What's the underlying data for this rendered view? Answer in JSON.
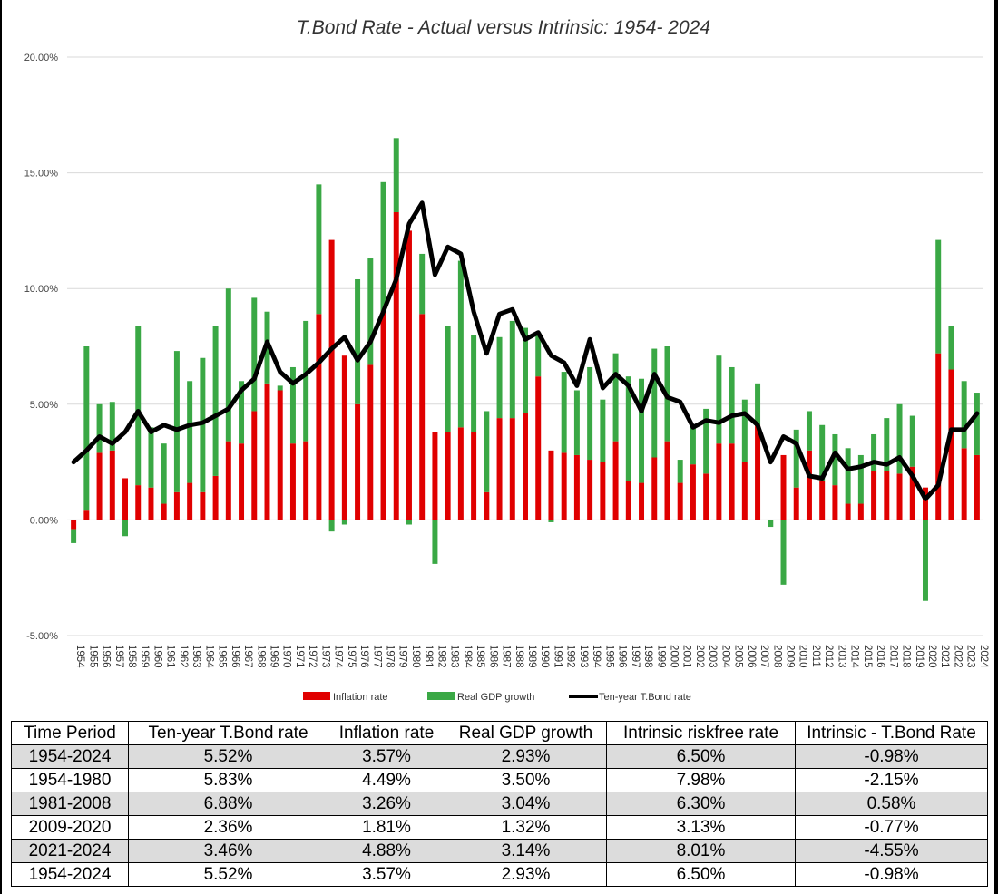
{
  "chart_data": {
    "type": "bar",
    "title": "T.Bond Rate - Actual versus Intrinsic: 1954- 2024",
    "stacked": true,
    "y_ticks": [
      "20.00%",
      "15.00%",
      "10.00%",
      "5.00%",
      "0.00%",
      "-5.00%"
    ],
    "ylim": [
      -5,
      20
    ],
    "y_unit": "%",
    "grid": true,
    "legend_position": "bottom",
    "categories": [
      "1954",
      "1955",
      "1956",
      "1957",
      "1958",
      "1959",
      "1960",
      "1961",
      "1962",
      "1963",
      "1964",
      "1965",
      "1966",
      "1967",
      "1968",
      "1969",
      "1970",
      "1971",
      "1972",
      "1973",
      "1974",
      "1975",
      "1976",
      "1977",
      "1978",
      "1979",
      "1980",
      "1981",
      "1982",
      "1983",
      "1984",
      "1985",
      "1986",
      "1987",
      "1988",
      "1989",
      "1990",
      "1991",
      "1992",
      "1993",
      "1994",
      "1995",
      "1996",
      "1997",
      "1998",
      "1999",
      "2000",
      "2001",
      "2002",
      "2003",
      "2004",
      "2005",
      "2006",
      "2007",
      "2008",
      "2009",
      "2010",
      "2011",
      "2012",
      "2013",
      "2014",
      "2015",
      "2016",
      "2017",
      "2018",
      "2019",
      "2020",
      "2021",
      "2022",
      "2023",
      "2024"
    ],
    "series": [
      {
        "name": "Inflation rate",
        "color": "#e00000",
        "kind": "bar",
        "values": [
          -0.4,
          0.4,
          2.9,
          3.0,
          1.8,
          1.5,
          1.4,
          0.7,
          1.2,
          1.6,
          1.2,
          1.9,
          3.4,
          3.3,
          4.7,
          5.9,
          5.6,
          3.3,
          3.4,
          8.9,
          12.1,
          7.1,
          5.0,
          6.7,
          9.0,
          13.3,
          12.5,
          8.9,
          3.8,
          3.8,
          4.0,
          3.8,
          1.2,
          4.4,
          4.4,
          4.6,
          6.2,
          3.0,
          2.9,
          2.8,
          2.6,
          2.5,
          3.4,
          1.7,
          1.6,
          2.7,
          3.4,
          1.6,
          2.4,
          2.0,
          3.3,
          3.3,
          2.5,
          4.1,
          0.0,
          2.8,
          1.4,
          3.0,
          1.7,
          1.5,
          0.7,
          0.7,
          2.1,
          2.1,
          2.0,
          2.3,
          1.4,
          7.2,
          6.5,
          3.1,
          2.8
        ]
      },
      {
        "name": "Real GDP growth",
        "color": "#3aa845",
        "kind": "bar",
        "values": [
          -0.6,
          7.1,
          2.1,
          2.1,
          -0.7,
          6.9,
          2.6,
          2.6,
          6.1,
          4.4,
          5.8,
          6.5,
          6.6,
          2.7,
          4.9,
          3.1,
          0.2,
          3.3,
          5.2,
          5.6,
          -0.5,
          -0.2,
          5.4,
          4.6,
          5.6,
          3.2,
          -0.2,
          2.6,
          -1.9,
          4.6,
          7.2,
          4.2,
          3.5,
          3.5,
          4.2,
          3.7,
          1.9,
          -0.1,
          3.5,
          2.8,
          4.0,
          2.7,
          3.8,
          4.5,
          4.5,
          4.7,
          4.1,
          1.0,
          1.7,
          2.8,
          3.8,
          3.3,
          2.7,
          1.8,
          -0.3,
          -2.8,
          2.5,
          1.7,
          2.4,
          2.2,
          2.4,
          2.1,
          1.6,
          2.3,
          3.0,
          2.2,
          -3.5,
          4.9,
          1.9,
          2.9,
          2.7
        ]
      },
      {
        "name": "Ten-year T.Bond rate",
        "color": "#000000",
        "kind": "line",
        "values": [
          2.5,
          3.0,
          3.6,
          3.3,
          3.8,
          4.7,
          3.8,
          4.1,
          3.9,
          4.1,
          4.2,
          4.5,
          4.8,
          5.6,
          6.1,
          7.7,
          6.4,
          5.9,
          6.3,
          6.8,
          7.4,
          7.9,
          6.9,
          7.7,
          9.0,
          10.4,
          12.8,
          13.7,
          10.6,
          11.8,
          11.5,
          9.0,
          7.2,
          8.9,
          9.1,
          7.8,
          8.1,
          7.1,
          6.8,
          5.8,
          7.8,
          5.7,
          6.3,
          5.8,
          4.7,
          6.3,
          5.3,
          5.1,
          4.0,
          4.3,
          4.2,
          4.5,
          4.6,
          4.1,
          2.5,
          3.6,
          3.3,
          1.9,
          1.8,
          2.9,
          2.2,
          2.3,
          2.5,
          2.4,
          2.7,
          1.9,
          0.9,
          1.5,
          3.9,
          3.9,
          4.6
        ]
      }
    ]
  },
  "table": {
    "headers": [
      "Time Period",
      "Ten-year T.Bond rate",
      "Inflation rate",
      "Real GDP growth",
      "Intrinsic riskfree rate",
      "Intrinsic - T.Bond Rate"
    ],
    "rows": [
      [
        "1954-2024",
        "5.52%",
        "3.57%",
        "2.93%",
        "6.50%",
        "-0.98%"
      ],
      [
        "1954-1980",
        "5.83%",
        "4.49%",
        "3.50%",
        "7.98%",
        "-2.15%"
      ],
      [
        "1981-2008",
        "6.88%",
        "3.26%",
        "3.04%",
        "6.30%",
        "0.58%"
      ],
      [
        "2009-2020",
        "2.36%",
        "1.81%",
        "1.32%",
        "3.13%",
        "-0.77%"
      ],
      [
        "2021-2024",
        "3.46%",
        "4.88%",
        "3.14%",
        "8.01%",
        "-4.55%"
      ],
      [
        "1954-2024",
        "5.52%",
        "3.57%",
        "2.93%",
        "6.50%",
        "-0.98%"
      ]
    ]
  }
}
